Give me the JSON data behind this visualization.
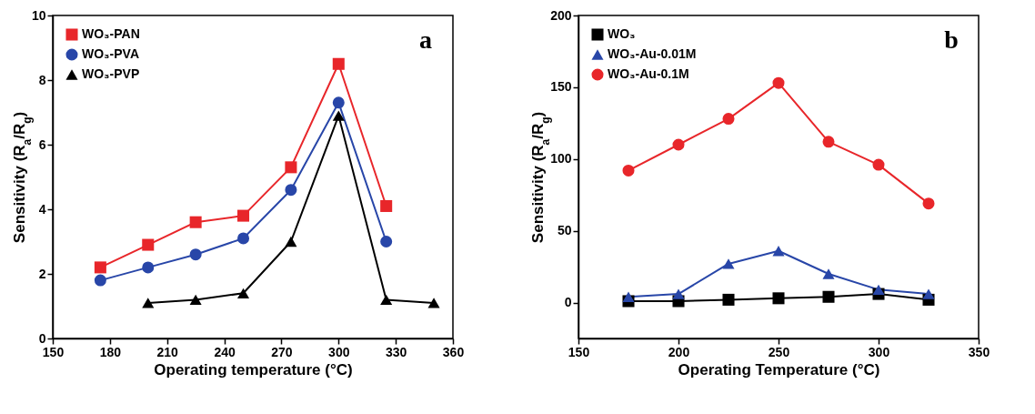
{
  "chart_data": [
    {
      "type": "line",
      "xlabel": "Operating temperature (°C)",
      "ylabel": "Sensitivity (R$_{a}$/R$_{g}$)",
      "annotations": [
        "a"
      ],
      "x": [
        175,
        200,
        225,
        250,
        275,
        300,
        325
      ],
      "series": [
        {
          "name": "WO₃-PAN",
          "color": "#e8262a",
          "marker": "square",
          "values": [
            2.2,
            2.9,
            3.6,
            3.8,
            5.3,
            8.5,
            4.1
          ]
        },
        {
          "name": "WO₃-PVA",
          "color": "#2846a8",
          "marker": "circle",
          "values": [
            1.8,
            2.2,
            2.6,
            3.1,
            4.6,
            7.3,
            3.0
          ]
        },
        {
          "name": "WO₃-PVP",
          "color": "#000000",
          "marker": "triangle",
          "x": [
            200,
            225,
            250,
            275,
            300,
            325,
            350
          ],
          "values": [
            1.1,
            1.2,
            1.4,
            3.0,
            6.9,
            1.2,
            1.1
          ]
        }
      ],
      "xlim": [
        150,
        360
      ],
      "xticks": [
        150,
        180,
        210,
        240,
        270,
        300,
        330,
        360
      ],
      "ylim": [
        0,
        10
      ],
      "yticks": [
        0,
        2,
        4,
        6,
        8,
        10
      ],
      "grid": false,
      "legend": "top left"
    },
    {
      "type": "line",
      "xlabel": "Operating Temperature (°C)",
      "ylabel": "Sensitivity (R$_{a}$/R$_{g}$)",
      "annotations": [
        "b"
      ],
      "x": [
        175,
        200,
        225,
        250,
        275,
        300,
        325
      ],
      "series": [
        {
          "name": "WO₃",
          "color": "#000000",
          "marker": "square",
          "values": [
            1,
            1,
            2,
            3,
            4,
            6,
            2
          ]
        },
        {
          "name": "WO₃-Au-0.01M",
          "color": "#2846a8",
          "marker": "triangle",
          "values": [
            4,
            6,
            27,
            36,
            20,
            9,
            6
          ]
        },
        {
          "name": "WO₃-Au-0.1M",
          "color": "#e8262a",
          "marker": "circle",
          "values": [
            92,
            110,
            128,
            153,
            112,
            96,
            69
          ]
        }
      ],
      "xlim": [
        150,
        350
      ],
      "xticks": [
        150,
        200,
        250,
        300,
        350
      ],
      "ylim": [
        -25,
        200
      ],
      "yticks": [
        0,
        50,
        100,
        150,
        200
      ],
      "grid": false,
      "legend": "top left"
    }
  ]
}
